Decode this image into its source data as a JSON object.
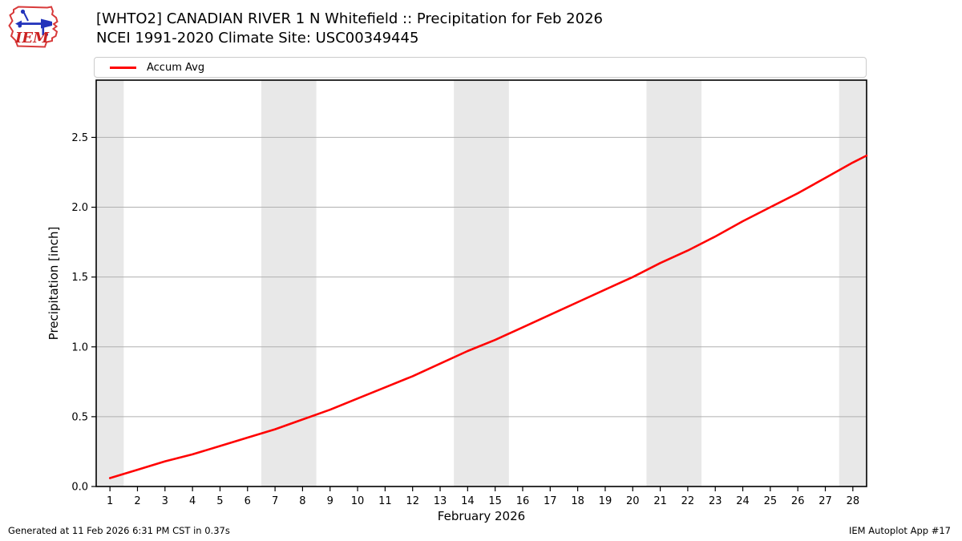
{
  "header": {
    "title_line1": "[WHTO2] CANADIAN RIVER 1 N Whitefield :: Precipitation for Feb 2026",
    "title_line2": "NCEI 1991-2020 Climate Site: USC00349445"
  },
  "logo": {
    "text": "IEM"
  },
  "footer": {
    "generated": "Generated at 11 Feb 2026 6:31 PM CST in 0.37s",
    "app": "IEM Autoplot App #17"
  },
  "colors": {
    "accent_red": "#ff0000",
    "weekend_band": "#e8e8e8",
    "gridline": "#b0b0b0",
    "spine": "#000000"
  },
  "chart_data": {
    "type": "line",
    "title": "[WHTO2] CANADIAN RIVER 1 N Whitefield :: Precipitation for Feb 2026",
    "subtitle": "NCEI 1991-2020 Climate Site: USC00349445",
    "xlabel": "February 2026",
    "ylabel": "Precipitation [inch]",
    "xlim": [
      0.5,
      28.5
    ],
    "ylim": [
      0,
      2.91
    ],
    "xticks": [
      1,
      2,
      3,
      4,
      5,
      6,
      7,
      8,
      9,
      10,
      11,
      12,
      13,
      14,
      15,
      16,
      17,
      18,
      19,
      20,
      21,
      22,
      23,
      24,
      25,
      26,
      27,
      28
    ],
    "yticks": [
      0.0,
      0.5,
      1.0,
      1.5,
      2.0,
      2.5
    ],
    "grid": "horizontal-only",
    "legend_position": "top-full-width",
    "weekend_bands": [
      [
        0.5,
        1.5
      ],
      [
        6.5,
        8.5
      ],
      [
        13.5,
        15.5
      ],
      [
        20.5,
        22.5
      ],
      [
        27.5,
        28.5
      ]
    ],
    "series": [
      {
        "name": "Accum Avg",
        "color": "#ff0000",
        "x": [
          1,
          2,
          3,
          4,
          5,
          6,
          7,
          8,
          9,
          10,
          11,
          12,
          13,
          14,
          15,
          16,
          17,
          18,
          19,
          20,
          21,
          22,
          23,
          24,
          25,
          26,
          27,
          28,
          28.5
        ],
        "y": [
          0.06,
          0.12,
          0.18,
          0.23,
          0.29,
          0.35,
          0.41,
          0.48,
          0.55,
          0.63,
          0.71,
          0.79,
          0.88,
          0.97,
          1.05,
          1.14,
          1.23,
          1.32,
          1.41,
          1.5,
          1.6,
          1.69,
          1.79,
          1.9,
          2.0,
          2.1,
          2.21,
          2.32,
          2.37
        ]
      }
    ]
  }
}
